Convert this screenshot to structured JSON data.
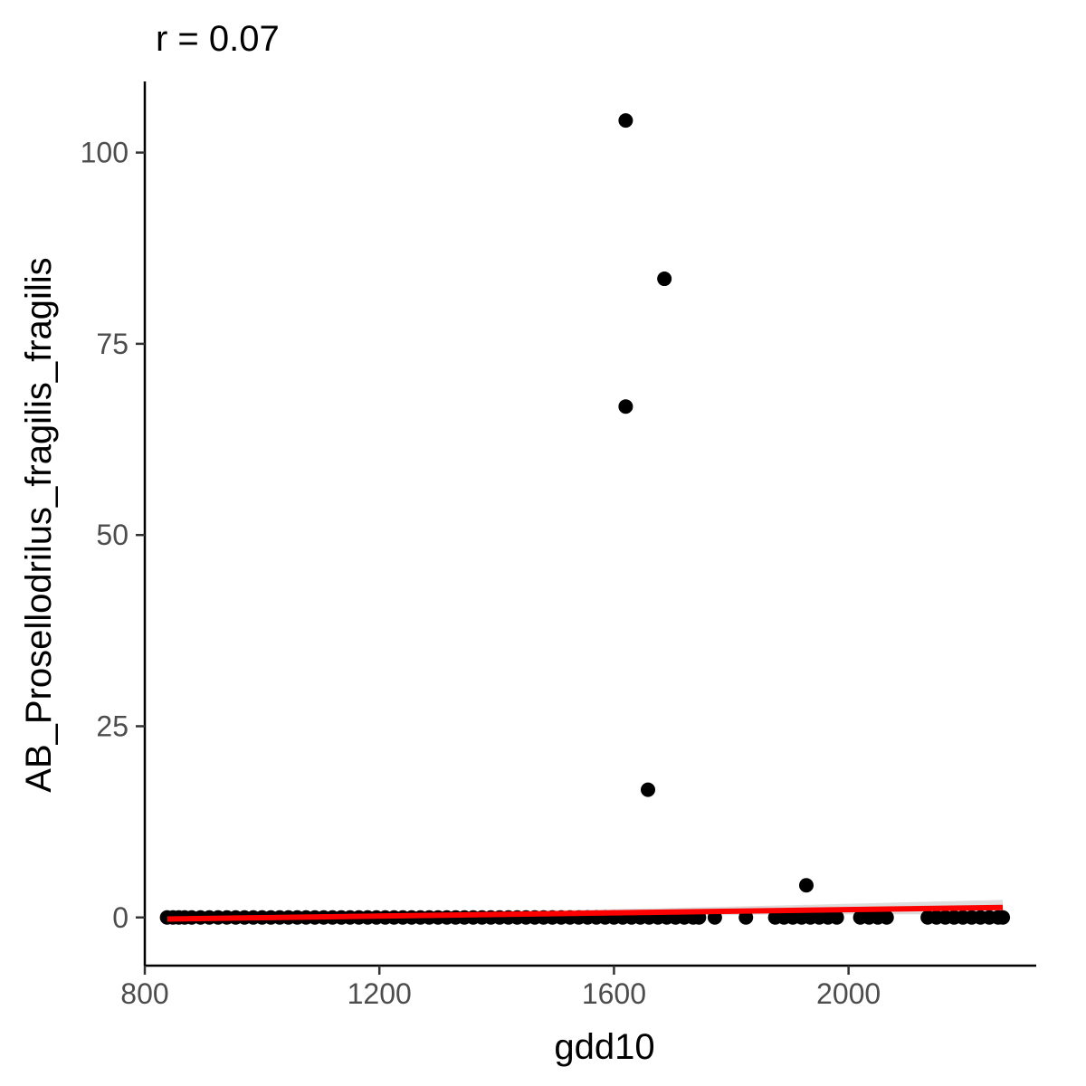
{
  "chart_data": {
    "type": "scatter",
    "title": "r = 0.07",
    "xlabel": "gdd10",
    "ylabel": "AB_Prosellodrilus_fragilis_fragilis",
    "xlim": [
      800,
      2320
    ],
    "ylim": [
      -6.3,
      109.3
    ],
    "xticks": [
      800,
      1200,
      1600,
      2000
    ],
    "yticks": [
      0,
      25,
      50,
      75,
      100
    ],
    "grid": false,
    "legend": "none",
    "points": [
      {
        "x": 838,
        "y": 0
      },
      {
        "x": 848,
        "y": 0
      },
      {
        "x": 858,
        "y": 0
      },
      {
        "x": 868,
        "y": 0
      },
      {
        "x": 880,
        "y": 0
      },
      {
        "x": 895,
        "y": 0
      },
      {
        "x": 910,
        "y": 0
      },
      {
        "x": 925,
        "y": 0
      },
      {
        "x": 940,
        "y": 0
      },
      {
        "x": 955,
        "y": 0
      },
      {
        "x": 970,
        "y": 0
      },
      {
        "x": 985,
        "y": 0
      },
      {
        "x": 1000,
        "y": 0
      },
      {
        "x": 1015,
        "y": 0
      },
      {
        "x": 1030,
        "y": 0
      },
      {
        "x": 1045,
        "y": 0
      },
      {
        "x": 1060,
        "y": 0
      },
      {
        "x": 1075,
        "y": 0
      },
      {
        "x": 1090,
        "y": 0
      },
      {
        "x": 1105,
        "y": 0
      },
      {
        "x": 1120,
        "y": 0
      },
      {
        "x": 1135,
        "y": 0
      },
      {
        "x": 1150,
        "y": 0
      },
      {
        "x": 1165,
        "y": 0
      },
      {
        "x": 1180,
        "y": 0
      },
      {
        "x": 1195,
        "y": 0
      },
      {
        "x": 1210,
        "y": 0
      },
      {
        "x": 1225,
        "y": 0
      },
      {
        "x": 1240,
        "y": 0
      },
      {
        "x": 1255,
        "y": 0
      },
      {
        "x": 1270,
        "y": 0
      },
      {
        "x": 1285,
        "y": 0
      },
      {
        "x": 1300,
        "y": 0
      },
      {
        "x": 1315,
        "y": 0
      },
      {
        "x": 1330,
        "y": 0
      },
      {
        "x": 1345,
        "y": 0
      },
      {
        "x": 1360,
        "y": 0
      },
      {
        "x": 1375,
        "y": 0
      },
      {
        "x": 1390,
        "y": 0
      },
      {
        "x": 1405,
        "y": 0
      },
      {
        "x": 1420,
        "y": 0
      },
      {
        "x": 1435,
        "y": 0
      },
      {
        "x": 1450,
        "y": 0
      },
      {
        "x": 1465,
        "y": 0
      },
      {
        "x": 1480,
        "y": 0
      },
      {
        "x": 1495,
        "y": 0
      },
      {
        "x": 1510,
        "y": 0
      },
      {
        "x": 1525,
        "y": 0
      },
      {
        "x": 1540,
        "y": 0
      },
      {
        "x": 1555,
        "y": 0
      },
      {
        "x": 1570,
        "y": 0
      },
      {
        "x": 1585,
        "y": 0
      },
      {
        "x": 1600,
        "y": 0
      },
      {
        "x": 1615,
        "y": 0
      },
      {
        "x": 1630,
        "y": 0
      },
      {
        "x": 1645,
        "y": 0
      },
      {
        "x": 1660,
        "y": 0
      },
      {
        "x": 1675,
        "y": 0
      },
      {
        "x": 1690,
        "y": 0
      },
      {
        "x": 1705,
        "y": 0
      },
      {
        "x": 1720,
        "y": 0
      },
      {
        "x": 1735,
        "y": 0
      },
      {
        "x": 1745,
        "y": 0
      },
      {
        "x": 1772,
        "y": 0
      },
      {
        "x": 1825,
        "y": 0
      },
      {
        "x": 1875,
        "y": 0
      },
      {
        "x": 1890,
        "y": 0
      },
      {
        "x": 1905,
        "y": 0
      },
      {
        "x": 1920,
        "y": 0
      },
      {
        "x": 1935,
        "y": 0
      },
      {
        "x": 1950,
        "y": 0
      },
      {
        "x": 1965,
        "y": 0
      },
      {
        "x": 1980,
        "y": 0
      },
      {
        "x": 2020,
        "y": 0
      },
      {
        "x": 2035,
        "y": 0
      },
      {
        "x": 2050,
        "y": 0
      },
      {
        "x": 2065,
        "y": 0
      },
      {
        "x": 2135,
        "y": 0
      },
      {
        "x": 2150,
        "y": 0
      },
      {
        "x": 2165,
        "y": 0
      },
      {
        "x": 2180,
        "y": 0
      },
      {
        "x": 2195,
        "y": 0
      },
      {
        "x": 2210,
        "y": 0
      },
      {
        "x": 2225,
        "y": 0
      },
      {
        "x": 2240,
        "y": 0
      },
      {
        "x": 2255,
        "y": 0
      },
      {
        "x": 2263,
        "y": 0
      },
      {
        "x": 1620,
        "y": 104.2
      },
      {
        "x": 1686,
        "y": 83.5
      },
      {
        "x": 1620,
        "y": 66.8
      },
      {
        "x": 1658,
        "y": 16.7
      },
      {
        "x": 1928,
        "y": 4.2
      }
    ],
    "fit_line": {
      "x": [
        838,
        2263
      ],
      "y": [
        -0.2,
        1.3
      ],
      "color": "#ff0000",
      "band": {
        "x": [
          838,
          1200,
          1550,
          1900,
          2263
        ],
        "lower": [
          -0.7,
          -0.3,
          0.1,
          0.4,
          0.4
        ],
        "upper": [
          0.3,
          0.6,
          1.0,
          1.6,
          2.3
        ]
      },
      "band_color": "#d9d9d9"
    },
    "point_color": "#000000"
  }
}
